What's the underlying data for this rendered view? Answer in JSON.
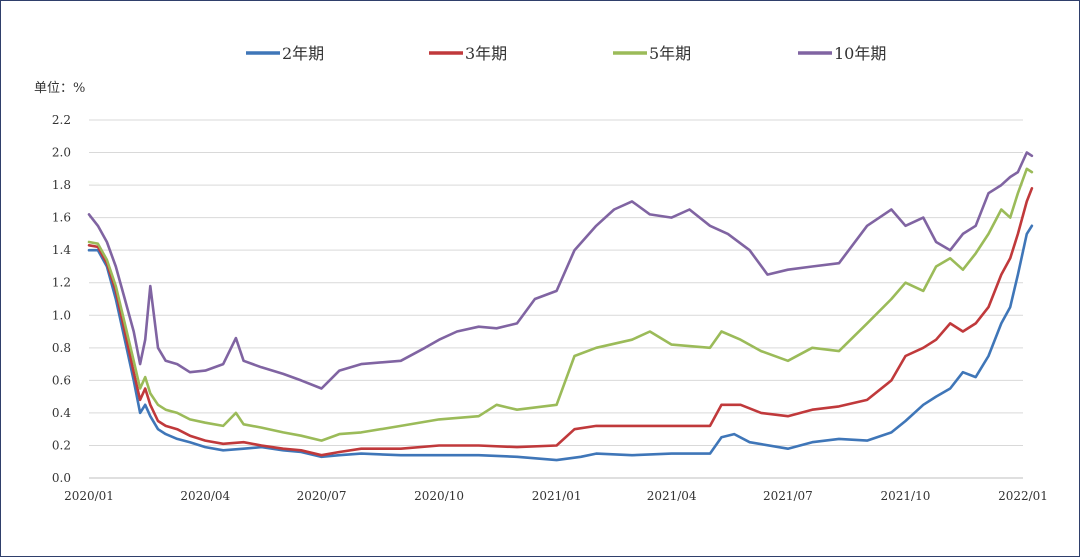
{
  "chart_data": {
    "type": "line",
    "unit_label": "单位：%",
    "ylim": [
      0.0,
      2.2
    ],
    "y_ticks": [
      "0.0",
      "0.2",
      "0.4",
      "0.6",
      "0.8",
      "1.0",
      "1.2",
      "1.4",
      "1.6",
      "1.8",
      "2.0",
      "2.2"
    ],
    "x_range": [
      "2020-01-01",
      "2022-01-01"
    ],
    "x_ticks": [
      {
        "date": "2020-01-01",
        "label": "2020/01"
      },
      {
        "date": "2020-04-01",
        "label": "2020/04"
      },
      {
        "date": "2020-07-01",
        "label": "2020/07"
      },
      {
        "date": "2020-10-01",
        "label": "2020/10"
      },
      {
        "date": "2021-01-01",
        "label": "2021/01"
      },
      {
        "date": "2021-04-01",
        "label": "2021/04"
      },
      {
        "date": "2021-07-01",
        "label": "2021/07"
      },
      {
        "date": "2021-10-01",
        "label": "2021/10"
      },
      {
        "date": "2022-01-01",
        "label": "2022/01"
      }
    ],
    "grid": true,
    "legend_position": "top",
    "series": [
      {
        "name": "2年期",
        "color": "#3f76b8",
        "points": [
          [
            "2020-01-01",
            1.4
          ],
          [
            "2020-01-08",
            1.4
          ],
          [
            "2020-01-15",
            1.3
          ],
          [
            "2020-01-22",
            1.1
          ],
          [
            "2020-01-29",
            0.85
          ],
          [
            "2020-02-05",
            0.6
          ],
          [
            "2020-02-10",
            0.4
          ],
          [
            "2020-02-14",
            0.45
          ],
          [
            "2020-02-18",
            0.38
          ],
          [
            "2020-02-24",
            0.3
          ],
          [
            "2020-03-01",
            0.27
          ],
          [
            "2020-03-10",
            0.24
          ],
          [
            "2020-03-20",
            0.22
          ],
          [
            "2020-04-01",
            0.19
          ],
          [
            "2020-04-15",
            0.17
          ],
          [
            "2020-05-01",
            0.18
          ],
          [
            "2020-05-15",
            0.19
          ],
          [
            "2020-06-01",
            0.17
          ],
          [
            "2020-06-15",
            0.16
          ],
          [
            "2020-07-01",
            0.13
          ],
          [
            "2020-07-15",
            0.14
          ],
          [
            "2020-08-01",
            0.15
          ],
          [
            "2020-09-01",
            0.14
          ],
          [
            "2020-10-01",
            0.14
          ],
          [
            "2020-11-01",
            0.14
          ],
          [
            "2020-12-01",
            0.13
          ],
          [
            "2021-01-01",
            0.11
          ],
          [
            "2021-01-20",
            0.13
          ],
          [
            "2021-02-01",
            0.15
          ],
          [
            "2021-03-01",
            0.14
          ],
          [
            "2021-04-01",
            0.15
          ],
          [
            "2021-05-01",
            0.15
          ],
          [
            "2021-05-10",
            0.25
          ],
          [
            "2021-05-20",
            0.27
          ],
          [
            "2021-06-01",
            0.22
          ],
          [
            "2021-07-01",
            0.18
          ],
          [
            "2021-07-20",
            0.22
          ],
          [
            "2021-08-10",
            0.24
          ],
          [
            "2021-09-01",
            0.23
          ],
          [
            "2021-09-20",
            0.28
          ],
          [
            "2021-10-01",
            0.35
          ],
          [
            "2021-10-15",
            0.45
          ],
          [
            "2021-10-25",
            0.5
          ],
          [
            "2021-11-05",
            0.55
          ],
          [
            "2021-11-15",
            0.65
          ],
          [
            "2021-11-25",
            0.62
          ],
          [
            "2021-12-05",
            0.75
          ],
          [
            "2021-12-15",
            0.95
          ],
          [
            "2021-12-22",
            1.05
          ],
          [
            "2021-12-28",
            1.25
          ],
          [
            "2022-01-04",
            1.5
          ],
          [
            "2022-01-08",
            1.55
          ]
        ]
      },
      {
        "name": "3年期",
        "color": "#c0393b",
        "points": [
          [
            "2020-01-01",
            1.43
          ],
          [
            "2020-01-08",
            1.42
          ],
          [
            "2020-01-15",
            1.32
          ],
          [
            "2020-01-22",
            1.15
          ],
          [
            "2020-01-29",
            0.9
          ],
          [
            "2020-02-05",
            0.65
          ],
          [
            "2020-02-10",
            0.48
          ],
          [
            "2020-02-14",
            0.55
          ],
          [
            "2020-02-18",
            0.45
          ],
          [
            "2020-02-24",
            0.35
          ],
          [
            "2020-03-01",
            0.32
          ],
          [
            "2020-03-10",
            0.3
          ],
          [
            "2020-03-20",
            0.26
          ],
          [
            "2020-04-01",
            0.23
          ],
          [
            "2020-04-15",
            0.21
          ],
          [
            "2020-05-01",
            0.22
          ],
          [
            "2020-05-15",
            0.2
          ],
          [
            "2020-06-01",
            0.18
          ],
          [
            "2020-06-15",
            0.17
          ],
          [
            "2020-07-01",
            0.14
          ],
          [
            "2020-07-15",
            0.16
          ],
          [
            "2020-08-01",
            0.18
          ],
          [
            "2020-09-01",
            0.18
          ],
          [
            "2020-10-01",
            0.2
          ],
          [
            "2020-11-01",
            0.2
          ],
          [
            "2020-12-01",
            0.19
          ],
          [
            "2021-01-01",
            0.2
          ],
          [
            "2021-01-15",
            0.3
          ],
          [
            "2021-02-01",
            0.32
          ],
          [
            "2021-03-01",
            0.32
          ],
          [
            "2021-04-01",
            0.32
          ],
          [
            "2021-05-01",
            0.32
          ],
          [
            "2021-05-10",
            0.45
          ],
          [
            "2021-05-25",
            0.45
          ],
          [
            "2021-06-10",
            0.4
          ],
          [
            "2021-07-01",
            0.38
          ],
          [
            "2021-07-20",
            0.42
          ],
          [
            "2021-08-10",
            0.44
          ],
          [
            "2021-09-01",
            0.48
          ],
          [
            "2021-09-20",
            0.6
          ],
          [
            "2021-10-01",
            0.75
          ],
          [
            "2021-10-15",
            0.8
          ],
          [
            "2021-10-25",
            0.85
          ],
          [
            "2021-11-05",
            0.95
          ],
          [
            "2021-11-15",
            0.9
          ],
          [
            "2021-11-25",
            0.95
          ],
          [
            "2021-12-05",
            1.05
          ],
          [
            "2021-12-15",
            1.25
          ],
          [
            "2021-12-22",
            1.35
          ],
          [
            "2021-12-28",
            1.5
          ],
          [
            "2022-01-04",
            1.7
          ],
          [
            "2022-01-08",
            1.78
          ]
        ]
      },
      {
        "name": "5年期",
        "color": "#9bbb59",
        "points": [
          [
            "2020-01-01",
            1.45
          ],
          [
            "2020-01-08",
            1.44
          ],
          [
            "2020-01-15",
            1.34
          ],
          [
            "2020-01-22",
            1.18
          ],
          [
            "2020-01-29",
            0.95
          ],
          [
            "2020-02-05",
            0.72
          ],
          [
            "2020-02-10",
            0.55
          ],
          [
            "2020-02-14",
            0.62
          ],
          [
            "2020-02-18",
            0.52
          ],
          [
            "2020-02-24",
            0.45
          ],
          [
            "2020-03-01",
            0.42
          ],
          [
            "2020-03-10",
            0.4
          ],
          [
            "2020-03-20",
            0.36
          ],
          [
            "2020-04-01",
            0.34
          ],
          [
            "2020-04-15",
            0.32
          ],
          [
            "2020-04-25",
            0.4
          ],
          [
            "2020-05-01",
            0.33
          ],
          [
            "2020-05-15",
            0.31
          ],
          [
            "2020-06-01",
            0.28
          ],
          [
            "2020-06-15",
            0.26
          ],
          [
            "2020-07-01",
            0.23
          ],
          [
            "2020-07-15",
            0.27
          ],
          [
            "2020-08-01",
            0.28
          ],
          [
            "2020-09-01",
            0.32
          ],
          [
            "2020-10-01",
            0.36
          ],
          [
            "2020-11-01",
            0.38
          ],
          [
            "2020-11-15",
            0.45
          ],
          [
            "2020-12-01",
            0.42
          ],
          [
            "2021-01-01",
            0.45
          ],
          [
            "2021-01-15",
            0.75
          ],
          [
            "2021-02-01",
            0.8
          ],
          [
            "2021-03-01",
            0.85
          ],
          [
            "2021-03-15",
            0.9
          ],
          [
            "2021-04-01",
            0.82
          ],
          [
            "2021-05-01",
            0.8
          ],
          [
            "2021-05-10",
            0.9
          ],
          [
            "2021-05-25",
            0.85
          ],
          [
            "2021-06-10",
            0.78
          ],
          [
            "2021-07-01",
            0.72
          ],
          [
            "2021-07-20",
            0.8
          ],
          [
            "2021-08-10",
            0.78
          ],
          [
            "2021-09-01",
            0.95
          ],
          [
            "2021-09-20",
            1.1
          ],
          [
            "2021-10-01",
            1.2
          ],
          [
            "2021-10-15",
            1.15
          ],
          [
            "2021-10-25",
            1.3
          ],
          [
            "2021-11-05",
            1.35
          ],
          [
            "2021-11-15",
            1.28
          ],
          [
            "2021-11-25",
            1.38
          ],
          [
            "2021-12-05",
            1.5
          ],
          [
            "2021-12-15",
            1.65
          ],
          [
            "2021-12-22",
            1.6
          ],
          [
            "2021-12-28",
            1.75
          ],
          [
            "2022-01-04",
            1.9
          ],
          [
            "2022-01-08",
            1.88
          ]
        ]
      },
      {
        "name": "10年期",
        "color": "#8064a2",
        "points": [
          [
            "2020-01-01",
            1.62
          ],
          [
            "2020-01-08",
            1.55
          ],
          [
            "2020-01-15",
            1.45
          ],
          [
            "2020-01-22",
            1.3
          ],
          [
            "2020-01-29",
            1.1
          ],
          [
            "2020-02-05",
            0.9
          ],
          [
            "2020-02-10",
            0.7
          ],
          [
            "2020-02-14",
            0.85
          ],
          [
            "2020-02-18",
            1.18
          ],
          [
            "2020-02-24",
            0.8
          ],
          [
            "2020-03-01",
            0.72
          ],
          [
            "2020-03-10",
            0.7
          ],
          [
            "2020-03-20",
            0.65
          ],
          [
            "2020-04-01",
            0.66
          ],
          [
            "2020-04-15",
            0.7
          ],
          [
            "2020-04-25",
            0.86
          ],
          [
            "2020-05-01",
            0.72
          ],
          [
            "2020-05-15",
            0.68
          ],
          [
            "2020-06-01",
            0.64
          ],
          [
            "2020-06-15",
            0.6
          ],
          [
            "2020-07-01",
            0.55
          ],
          [
            "2020-07-15",
            0.66
          ],
          [
            "2020-08-01",
            0.7
          ],
          [
            "2020-09-01",
            0.72
          ],
          [
            "2020-09-20",
            0.8
          ],
          [
            "2020-10-01",
            0.85
          ],
          [
            "2020-10-15",
            0.9
          ],
          [
            "2020-11-01",
            0.93
          ],
          [
            "2020-11-15",
            0.92
          ],
          [
            "2020-12-01",
            0.95
          ],
          [
            "2020-12-15",
            1.1
          ],
          [
            "2021-01-01",
            1.15
          ],
          [
            "2021-01-15",
            1.4
          ],
          [
            "2021-02-01",
            1.55
          ],
          [
            "2021-02-15",
            1.65
          ],
          [
            "2021-03-01",
            1.7
          ],
          [
            "2021-03-15",
            1.62
          ],
          [
            "2021-04-01",
            1.6
          ],
          [
            "2021-04-15",
            1.65
          ],
          [
            "2021-05-01",
            1.55
          ],
          [
            "2021-05-15",
            1.5
          ],
          [
            "2021-06-01",
            1.4
          ],
          [
            "2021-06-15",
            1.25
          ],
          [
            "2021-07-01",
            1.28
          ],
          [
            "2021-07-20",
            1.3
          ],
          [
            "2021-08-10",
            1.32
          ],
          [
            "2021-09-01",
            1.55
          ],
          [
            "2021-09-20",
            1.65
          ],
          [
            "2021-10-01",
            1.55
          ],
          [
            "2021-10-15",
            1.6
          ],
          [
            "2021-10-25",
            1.45
          ],
          [
            "2021-11-05",
            1.4
          ],
          [
            "2021-11-15",
            1.5
          ],
          [
            "2021-11-25",
            1.55
          ],
          [
            "2021-12-05",
            1.75
          ],
          [
            "2021-12-15",
            1.8
          ],
          [
            "2021-12-22",
            1.85
          ],
          [
            "2021-12-28",
            1.88
          ],
          [
            "2022-01-04",
            2.0
          ],
          [
            "2022-01-08",
            1.98
          ]
        ]
      }
    ]
  }
}
